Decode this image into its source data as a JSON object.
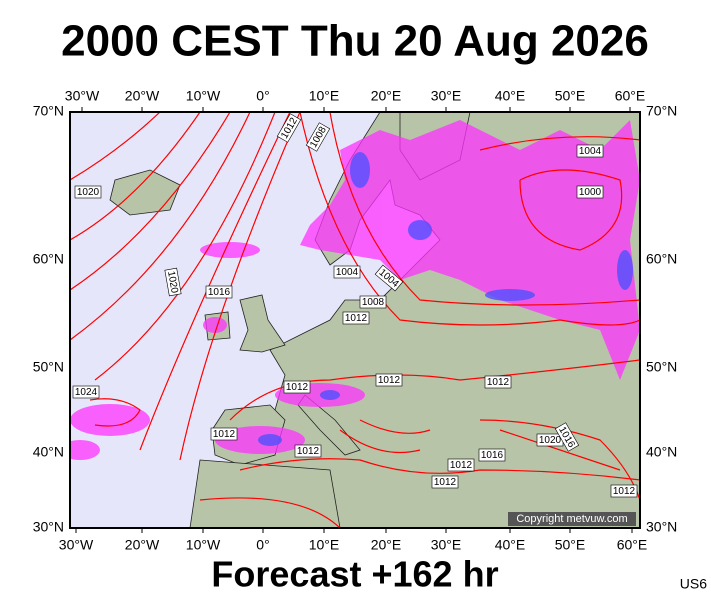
{
  "header": {
    "title": "2000 CEST Thu 20 Aug 2026"
  },
  "footer": {
    "forecast": "Forecast +162 hr",
    "code": "US6"
  },
  "copyright": "Copyright metvuw.com",
  "axes": {
    "top": [
      "30°W",
      "20°W",
      "10°W",
      "0°",
      "10°E",
      "20°E",
      "30°E",
      "40°E",
      "50°E",
      "60°E"
    ],
    "bottom": [
      "30°W",
      "20°W",
      "10°W",
      "0°",
      "10°E",
      "20°E",
      "30°E",
      "40°E",
      "50°E",
      "60°E"
    ],
    "left": [
      "70°N",
      "60°N",
      "50°N",
      "40°N",
      "30°N"
    ],
    "right": [
      "70°N",
      "60°N",
      "50°N",
      "40°N",
      "30°N"
    ]
  },
  "isobar_labels": [
    "1012",
    "1008",
    "1020",
    "1004",
    "1000",
    "1020",
    "1016",
    "1004",
    "1004",
    "1008",
    "1012",
    "1024",
    "1012",
    "1012",
    "1012",
    "1012",
    "1012",
    "1016",
    "1020",
    "1016",
    "1012",
    "1012",
    "1012"
  ]
}
